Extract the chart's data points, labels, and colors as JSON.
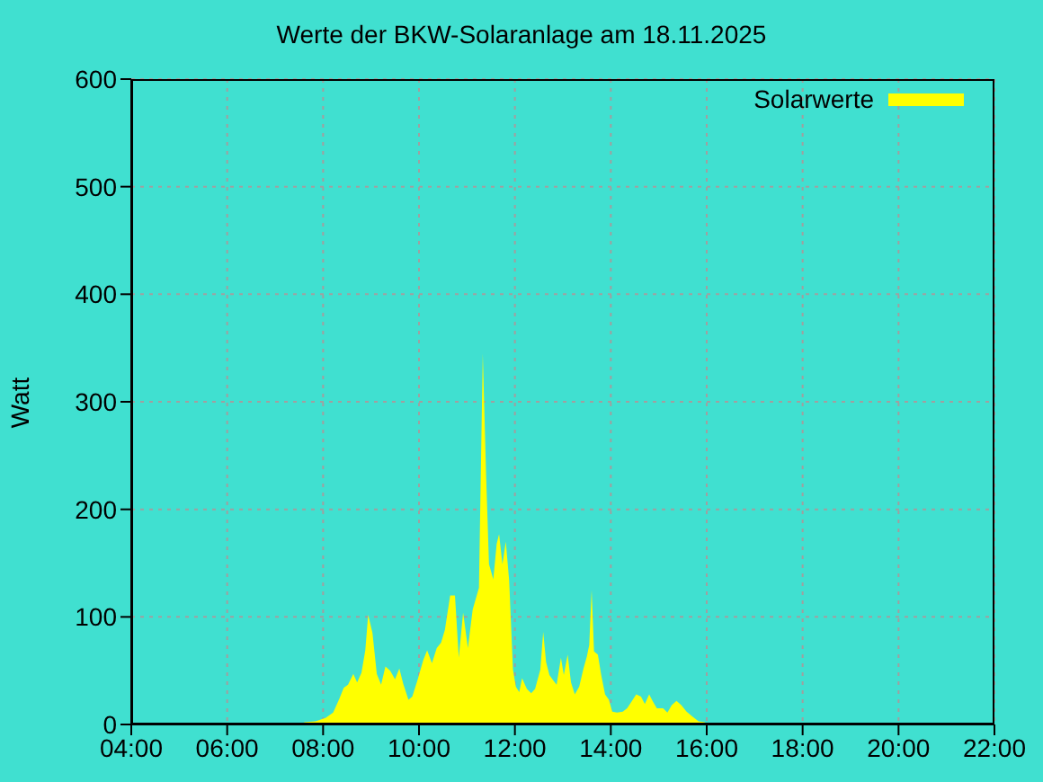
{
  "chart_data": {
    "type": "area",
    "title": "Werte der BKW-Solaranlage am 18.11.2025",
    "ylabel": "Watt",
    "series": [
      {
        "name": "Solarwerte",
        "color": "#ffff00",
        "x": [
          7.55,
          7.61,
          7.84,
          8.05,
          8.21,
          8.34,
          8.43,
          8.52,
          8.63,
          8.71,
          8.8,
          8.88,
          8.94,
          9.03,
          9.12,
          9.21,
          9.3,
          9.4,
          9.5,
          9.59,
          9.67,
          9.78,
          9.86,
          9.96,
          10.09,
          10.17,
          10.27,
          10.37,
          10.46,
          10.54,
          10.65,
          10.75,
          10.83,
          10.92,
          11.02,
          11.12,
          11.25,
          11.33,
          11.4,
          11.46,
          11.55,
          11.62,
          11.67,
          11.74,
          11.81,
          11.88,
          11.96,
          12.02,
          12.09,
          12.15,
          12.25,
          12.34,
          12.42,
          12.53,
          12.59,
          12.65,
          12.72,
          12.8,
          12.87,
          12.96,
          13.02,
          13.1,
          13.17,
          13.25,
          13.34,
          13.43,
          13.5,
          13.55,
          13.6,
          13.65,
          13.73,
          13.8,
          13.88,
          13.96,
          14.03,
          14.13,
          14.25,
          14.34,
          14.43,
          14.53,
          14.63,
          14.71,
          14.8,
          14.88,
          14.96,
          15.09,
          15.18,
          15.27,
          15.37,
          15.47,
          15.58,
          15.71,
          15.83,
          15.96,
          16.0
        ],
        "values": [
          0,
          2,
          3,
          6,
          11,
          24,
          34,
          37,
          47,
          39,
          48,
          69,
          102,
          85,
          47,
          37,
          54,
          50,
          42,
          52,
          38,
          23,
          26,
          40,
          60,
          69,
          57,
          71,
          76,
          88,
          120,
          120,
          62,
          104,
          71,
          107,
          127,
          345,
          231,
          149,
          135,
          168,
          177,
          149,
          170,
          134,
          51,
          35,
          30,
          43,
          33,
          29,
          33,
          51,
          86,
          58,
          46,
          41,
          37,
          62,
          46,
          65,
          39,
          28,
          35,
          52,
          63,
          74,
          125,
          68,
          65,
          46,
          28,
          23,
          12,
          11,
          12,
          15,
          21,
          28,
          26,
          19,
          28,
          21,
          15,
          15,
          11,
          18,
          22,
          18,
          12,
          7,
          3,
          2,
          0
        ]
      }
    ],
    "xlim": [
      4,
      22
    ],
    "xticks": [
      {
        "value": 4,
        "label": "04:00"
      },
      {
        "value": 6,
        "label": "06:00"
      },
      {
        "value": 8,
        "label": "08:00"
      },
      {
        "value": 10,
        "label": "10:00"
      },
      {
        "value": 12,
        "label": "12:00"
      },
      {
        "value": 14,
        "label": "14:00"
      },
      {
        "value": 16,
        "label": "16:00"
      },
      {
        "value": 18,
        "label": "18:00"
      },
      {
        "value": 20,
        "label": "20:00"
      },
      {
        "value": 22,
        "label": "22:00"
      }
    ],
    "ylim": [
      0,
      600
    ],
    "yticks": [
      0,
      100,
      200,
      300,
      400,
      500,
      600
    ],
    "grid": true,
    "legend": "top right"
  }
}
